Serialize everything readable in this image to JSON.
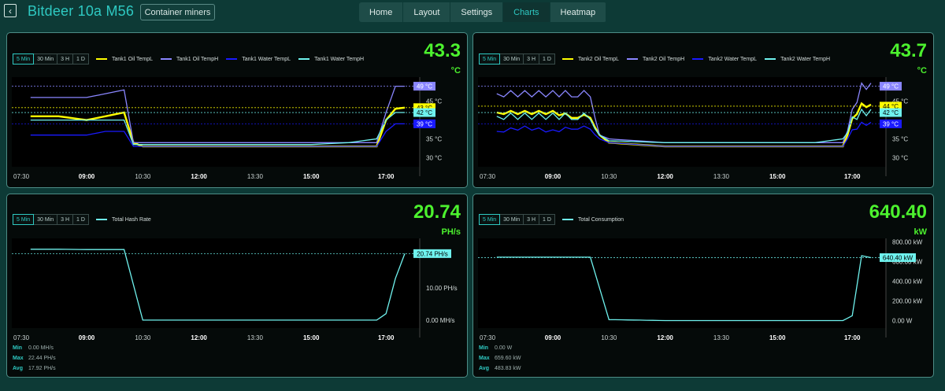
{
  "header": {
    "back_icon": "arrow-left-square-icon",
    "title": "Bitdeer 10a M56",
    "container_button": "Container miners",
    "nav": [
      {
        "label": "Home",
        "active": false
      },
      {
        "label": "Layout",
        "active": false
      },
      {
        "label": "Settings",
        "active": false
      },
      {
        "label": "Charts",
        "active": true
      },
      {
        "label": "Heatmap",
        "active": false
      }
    ]
  },
  "ranges": [
    "5 Min",
    "30 Min",
    "3 H",
    "1 D"
  ],
  "colors": {
    "oil_templ": "#ffff00",
    "oil_temph": "#8a86ff",
    "water_templ": "#1a1aff",
    "water_temph": "#6ff2ee",
    "accent": "#2ec9c2",
    "value_green": "#4cf22e"
  },
  "panels": {
    "tank1": {
      "big_value": "43.3",
      "unit": "°C",
      "legend": [
        "Tank1 Oil TempL",
        "Tank1 Oil TempH",
        "Tank1 Water TempL",
        "Tank1 Water TempH"
      ],
      "badges": [
        "49 °C",
        "43 °C",
        "42 °C",
        "39 °C"
      ],
      "y_ticks": [
        "45 °C",
        "35 °C",
        "30 °C"
      ],
      "x_ticks": [
        "07:30",
        "09:00",
        "10:30",
        "12:00",
        "13:30",
        "15:00",
        "17:00"
      ]
    },
    "tank2": {
      "big_value": "43.7",
      "unit": "°C",
      "legend": [
        "Tank2 Oil TempL",
        "Tank2 Oil TempH",
        "Tank2 Water TempL",
        "Tank2 Water TempH"
      ],
      "badges": [
        "49 °C",
        "44 °C",
        "42 °C",
        "39 °C"
      ],
      "y_ticks": [
        "45 °C",
        "35 °C",
        "30 °C"
      ],
      "x_ticks": [
        "07:30",
        "09:00",
        "10:30",
        "12:00",
        "13:30",
        "15:00",
        "17:00"
      ]
    },
    "hash": {
      "big_value": "20.74",
      "unit": "PH/s",
      "legend": [
        "Total Hash Rate"
      ],
      "badge": "20.74 PH/s",
      "y_ticks": [
        "10.00 PH/s",
        "0.00 MH/s"
      ],
      "x_ticks": [
        "07:30",
        "09:00",
        "10:30",
        "12:00",
        "13:30",
        "15:00",
        "17:00"
      ],
      "stats": [
        {
          "label": "Min",
          "value": "0.00 MH/s"
        },
        {
          "label": "Max",
          "value": "22.44 PH/s"
        },
        {
          "label": "Avg",
          "value": "17.92 PH/s"
        }
      ]
    },
    "power": {
      "big_value": "640.40",
      "unit": "kW",
      "legend": [
        "Total Consumption"
      ],
      "badge": "640.40 kW",
      "y_ticks": [
        "800.00 kW",
        "600.00 kW",
        "400.00 kW",
        "200.00 kW",
        "0.00 W"
      ],
      "x_ticks": [
        "07:30",
        "09:00",
        "10:30",
        "12:00",
        "13:30",
        "15:00",
        "17:00"
      ],
      "stats": [
        {
          "label": "Min",
          "value": "0.00 W"
        },
        {
          "label": "Max",
          "value": "659.60 kW"
        },
        {
          "label": "Avg",
          "value": "483.83 kW"
        }
      ]
    }
  },
  "chart_data": [
    {
      "type": "line",
      "x": [
        "07:30",
        "08:15",
        "09:00",
        "09:30",
        "10:00",
        "10:15",
        "10:30",
        "12:00",
        "13:30",
        "15:00",
        "16:00",
        "16:45",
        "17:00",
        "17:15",
        "17:30"
      ],
      "series": [
        {
          "name": "Tank1 Oil TempL",
          "values": [
            41,
            41,
            40,
            41,
            42,
            34,
            33,
            33,
            33,
            33,
            33,
            33,
            40,
            43,
            43.3
          ]
        },
        {
          "name": "Tank1 Oil TempH",
          "values": [
            46,
            46,
            46,
            47,
            48,
            34,
            34,
            34,
            34,
            34,
            34,
            34,
            42,
            49,
            49
          ]
        },
        {
          "name": "Tank1 Water TempL",
          "values": [
            36,
            36,
            36,
            37,
            37,
            33,
            33,
            33,
            33,
            33,
            33,
            33,
            37,
            39,
            39
          ]
        },
        {
          "name": "Tank1 Water TempH",
          "values": [
            40,
            40,
            40,
            40,
            40,
            33.5,
            33.5,
            33.5,
            33.5,
            33.5,
            34,
            35,
            40,
            42,
            42
          ]
        }
      ],
      "ylim": [
        28,
        51
      ]
    },
    {
      "type": "line",
      "x": [
        "07:30",
        "08:15",
        "09:00",
        "09:30",
        "10:00",
        "10:15",
        "10:30",
        "12:00",
        "13:30",
        "15:00",
        "16:00",
        "16:45",
        "17:00",
        "17:15",
        "17:30"
      ],
      "series": [
        {
          "name": "Tank2 Oil TempL",
          "values": [
            42,
            42,
            42,
            41,
            41,
            36,
            34,
            33,
            33,
            33,
            33,
            33,
            40,
            44,
            43.7
          ]
        },
        {
          "name": "Tank2 Oil TempH",
          "values": [
            47,
            47,
            47,
            47,
            47,
            36,
            35,
            34,
            34,
            34,
            34,
            34,
            42,
            49,
            49
          ]
        },
        {
          "name": "Tank2 Water TempL",
          "values": [
            37,
            38,
            37,
            38,
            38,
            35,
            34,
            33,
            33,
            33,
            33,
            33,
            37,
            39,
            39
          ]
        },
        {
          "name": "Tank2 Water TempH",
          "values": [
            41,
            41,
            41,
            41,
            41,
            36,
            34.5,
            34,
            34,
            34,
            34,
            35,
            40,
            42,
            42
          ]
        }
      ],
      "ylim": [
        28,
        51
      ]
    },
    {
      "type": "line",
      "x": [
        "07:30",
        "08:15",
        "09:00",
        "09:30",
        "10:00",
        "10:30",
        "12:00",
        "13:30",
        "15:00",
        "16:45",
        "17:00",
        "17:15",
        "17:30"
      ],
      "series": [
        {
          "name": "Total Hash Rate",
          "values": [
            22.1,
            22.1,
            22.0,
            22.0,
            22.0,
            0,
            0,
            0,
            0,
            0,
            2.0,
            13.0,
            20.74
          ]
        }
      ],
      "ylim": [
        -2,
        25
      ]
    },
    {
      "type": "line",
      "x": [
        "07:30",
        "08:15",
        "09:00",
        "09:30",
        "10:00",
        "10:30",
        "12:00",
        "13:30",
        "15:00",
        "16:45",
        "17:00",
        "17:15",
        "17:30"
      ],
      "series": [
        {
          "name": "Total Consumption",
          "values": [
            645,
            645,
            645,
            645,
            645,
            10,
            0,
            0,
            0,
            0,
            50,
            659.6,
            640.4
          ]
        }
      ],
      "ylim": [
        -60,
        820
      ]
    }
  ]
}
